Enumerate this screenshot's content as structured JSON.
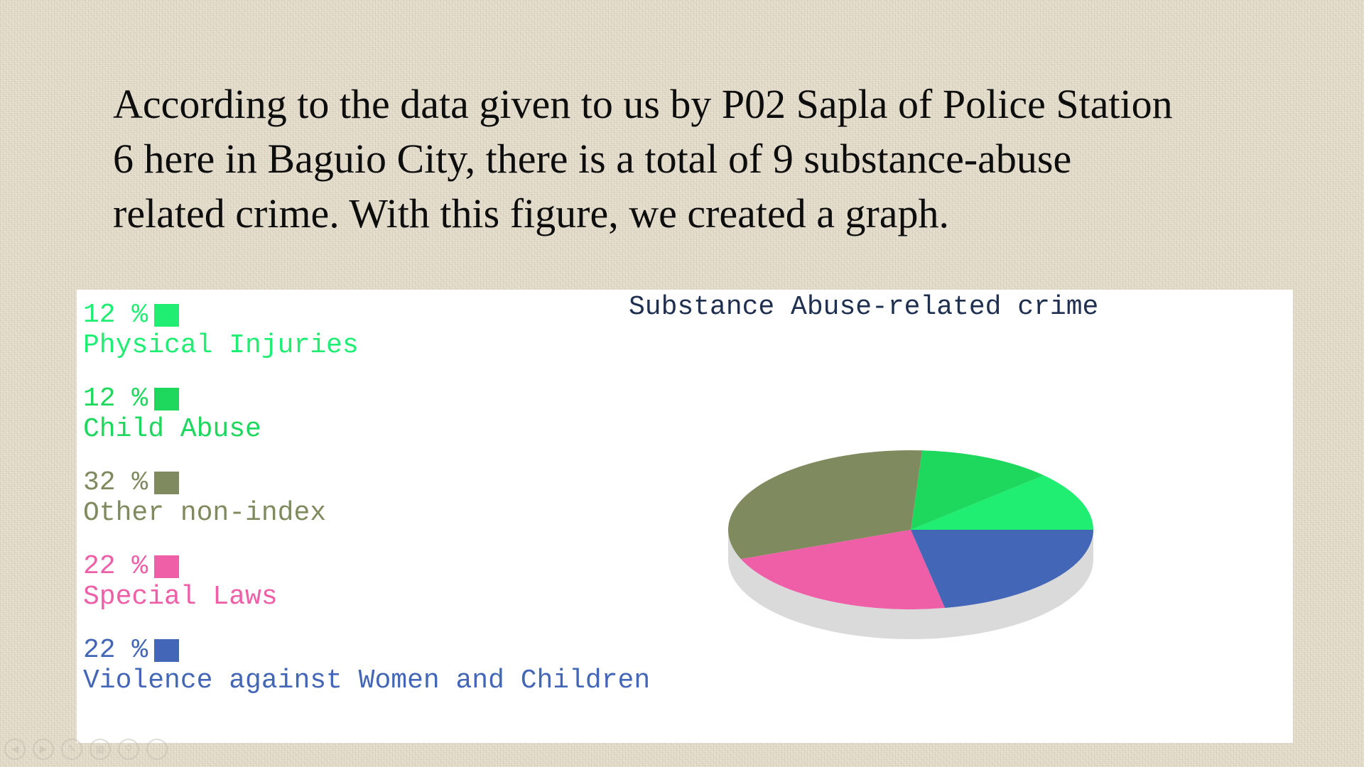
{
  "slide": {
    "lines": [
      "According to the data given to us by P02 Sapla of Police Station",
      "6 here in Baguio City, there is a total of 9 substance-abuse",
      "related crime. With this figure, we created a graph."
    ]
  },
  "chart_data": {
    "type": "pie",
    "title": "Substance Abuse-related crime",
    "legend_position": "left",
    "slices": [
      {
        "label": "Physical Injuries",
        "value": 12,
        "display": "12 %",
        "color": "#1fee73"
      },
      {
        "label": "Child Abuse",
        "value": 12,
        "display": "12 %",
        "color": "#1dd85c"
      },
      {
        "label": "Other non-index",
        "value": 32,
        "display": "32 %",
        "color": "#7f8a5e"
      },
      {
        "label": "Special Laws",
        "value": 22,
        "display": "22 %",
        "color": "#ee5fa7"
      },
      {
        "label": "Violence against Women and Children",
        "value": 22,
        "display": "22 %",
        "color": "#4466b7"
      }
    ]
  },
  "controls": {
    "icons": [
      "previous-icon",
      "next-icon",
      "pen-icon",
      "grid-icon",
      "zoom-icon",
      "more-icon"
    ]
  }
}
